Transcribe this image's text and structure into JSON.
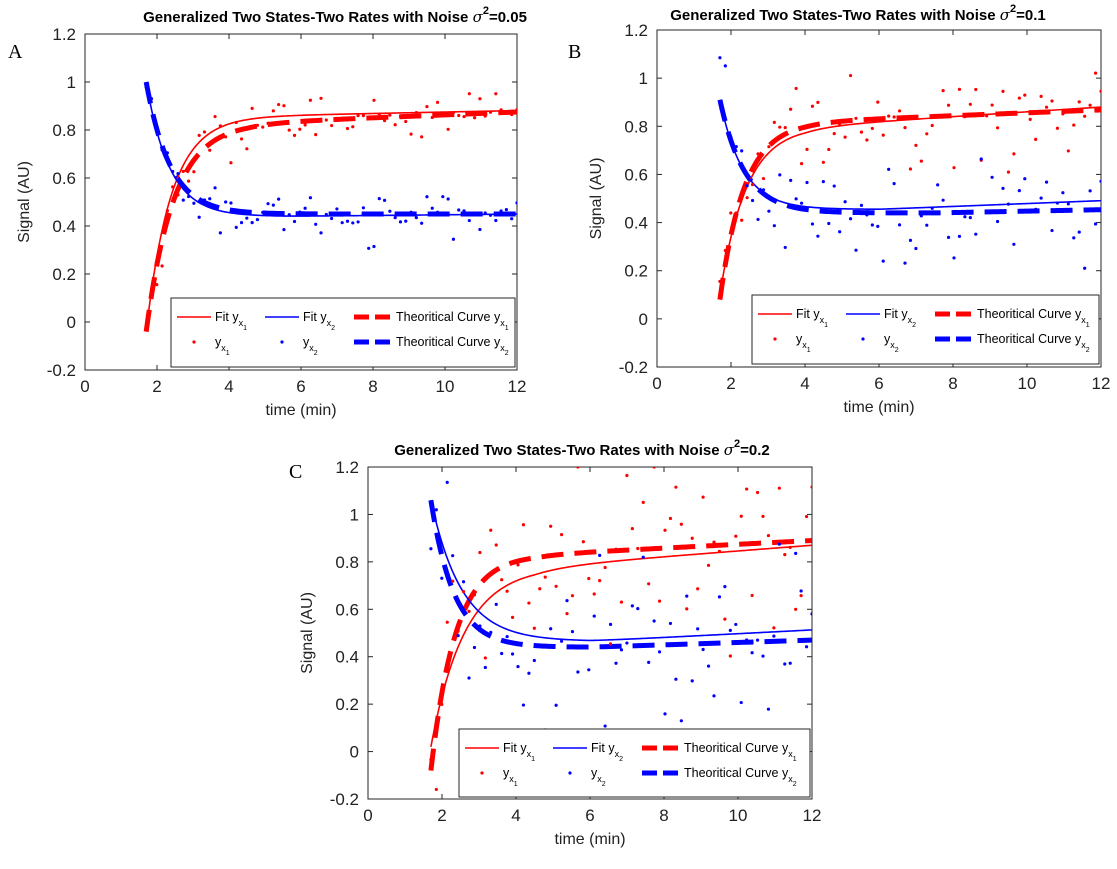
{
  "chart_data": [
    {
      "type": "line",
      "panel_label": "A",
      "title": "Generalized Two States-Two Rates with Noise σ²=0.05",
      "title_prefix": "Generalized Two States-Two Rates with Noise ",
      "title_sigma": "σ",
      "title_sup": "2",
      "title_suffix": "=0.05",
      "xlabel": "time (min)",
      "ylabel": "Signal (AU)",
      "xlim": [
        0,
        12
      ],
      "ylim": [
        -0.2,
        1.2
      ],
      "xticks": [
        "0",
        "2",
        "4",
        "6",
        "8",
        "10",
        "12"
      ],
      "yticks": [
        "-0.2",
        "0",
        "0.2",
        "0.4",
        "0.6",
        "0.8",
        "1",
        "1.2"
      ],
      "model": {
        "t0": 1.7,
        "fit": {
          "x1": {
            "ainf": 0.85,
            "a0": -0.04,
            "k": 1.45,
            "b": 0.003
          },
          "x2": {
            "ainf": 0.44,
            "a0": 1.0,
            "k": 1.55,
            "b": 0.0015,
            "bstart": 5.5
          }
        },
        "theory": {
          "x1": {
            "ainf": 0.83,
            "a0": -0.04,
            "k": 1.3,
            "b": 0.006,
            "bstart": 4.5
          },
          "x2": {
            "ainf": 0.45,
            "a0": 1.0,
            "k": 1.5
          }
        }
      },
      "noise_sd": 0.05,
      "n_points": 71,
      "series": [
        {
          "name": "Fit y_x1",
          "color": "#ff0000",
          "kind": "fit"
        },
        {
          "name": "Fit y_x2",
          "color": "#0000ff",
          "kind": "fit"
        },
        {
          "name": "Theoritical Curve y_x1",
          "color": "#ff0000",
          "kind": "theory"
        },
        {
          "name": "Theoritical Curve y_x2",
          "color": "#0000ff",
          "kind": "theory"
        },
        {
          "name": "y_x1",
          "color": "#ff0000",
          "kind": "points"
        },
        {
          "name": "y_x2",
          "color": "#0000ff",
          "kind": "points"
        }
      ],
      "legend": {
        "fit1": "Fit y",
        "fit2": "Fit y",
        "dot1": "y",
        "dot2": "y",
        "theory1": "Theoritical Curve y",
        "theory2": "Theoritical Curve y",
        "sub_x": "x",
        "sub1": "1",
        "sub2": "2"
      }
    },
    {
      "type": "line",
      "panel_label": "B",
      "title": "Generalized Two States-Two Rates with Noise σ²=0.1",
      "title_prefix": "Generalized Two States-Two Rates with Noise ",
      "title_sigma": "σ",
      "title_sup": "2",
      "title_suffix": "=0.1",
      "xlabel": "time (min)",
      "ylabel": "Signal (AU)",
      "xlim": [
        0,
        12
      ],
      "ylim": [
        -0.2,
        1.2
      ],
      "xticks": [
        "0",
        "2",
        "4",
        "6",
        "8",
        "10",
        "12"
      ],
      "yticks": [
        "-0.2",
        "0",
        "0.2",
        "0.4",
        "0.6",
        "0.8",
        "1",
        "1.2"
      ],
      "model": {
        "t0": 1.7,
        "fit": {
          "x1": {
            "ainf": 0.8,
            "a0": 0.1,
            "k": 1.4,
            "b": 0.01,
            "bstart": 4.0
          },
          "x2": {
            "ainf": 0.455,
            "a0": 0.91,
            "k": 1.6,
            "b": 0.006,
            "bstart": 6.0
          }
        },
        "theory": {
          "x1": {
            "ainf": 0.82,
            "a0": 0.08,
            "k": 1.5,
            "b": 0.006,
            "bstart": 4.0
          },
          "x2": {
            "ainf": 0.44,
            "a0": 0.91,
            "k": 1.5,
            "b": 0.003,
            "bstart": 7.5
          }
        }
      },
      "noise_sd": 0.1,
      "n_points": 71,
      "series": [
        {
          "name": "Fit y_x1",
          "color": "#ff0000",
          "kind": "fit"
        },
        {
          "name": "Fit y_x2",
          "color": "#0000ff",
          "kind": "fit"
        },
        {
          "name": "Theoritical Curve y_x1",
          "color": "#ff0000",
          "kind": "theory"
        },
        {
          "name": "Theoritical Curve y_x2",
          "color": "#0000ff",
          "kind": "theory"
        },
        {
          "name": "y_x1",
          "color": "#ff0000",
          "kind": "points"
        },
        {
          "name": "y_x2",
          "color": "#0000ff",
          "kind": "points"
        }
      ],
      "legend": {
        "fit1": "Fit y",
        "fit2": "Fit y",
        "dot1": "y",
        "dot2": "y",
        "theory1": "Theoritical Curve y",
        "theory2": "Theoritical Curve y",
        "sub_x": "x",
        "sub1": "1",
        "sub2": "2"
      }
    },
    {
      "type": "line",
      "panel_label": "C",
      "title": "Generalized Two States-Two Rates with Noise σ²=0.2",
      "title_prefix": "Generalized Two States-Two Rates with Noise ",
      "title_sigma": "σ",
      "title_sup": "2",
      "title_suffix": "=0.2",
      "xlabel": "time (min)",
      "ylabel": "Signal (AU)",
      "xlim": [
        0,
        12
      ],
      "ylim": [
        -0.2,
        1.2
      ],
      "xticks": [
        "0",
        "2",
        "4",
        "6",
        "8",
        "10",
        "12"
      ],
      "yticks": [
        "-0.2",
        "0",
        "0.2",
        "0.4",
        "0.6",
        "0.8",
        "1",
        "1.2"
      ],
      "model": {
        "t0": 1.7,
        "fit": {
          "x1": {
            "ainf": 0.78,
            "a0": 0.02,
            "k": 1.1,
            "b": 0.012,
            "bstart": 4.5
          },
          "x2": {
            "ainf": 0.465,
            "a0": 1.06,
            "k": 1.2,
            "b": 0.008,
            "bstart": 6.0
          }
        },
        "theory": {
          "x1": {
            "ainf": 0.83,
            "a0": -0.08,
            "k": 1.5,
            "b": 0.008,
            "bstart": 4.5
          },
          "x2": {
            "ainf": 0.44,
            "a0": 1.06,
            "k": 1.6,
            "b": 0.005,
            "bstart": 6.0
          }
        }
      },
      "noise_sd": 0.2,
      "n_points": 71,
      "series": [
        {
          "name": "Fit y_x1",
          "color": "#ff0000",
          "kind": "fit"
        },
        {
          "name": "Fit y_x2",
          "color": "#0000ff",
          "kind": "fit"
        },
        {
          "name": "Theoritical Curve y_x1",
          "color": "#ff0000",
          "kind": "theory"
        },
        {
          "name": "Theoritical Curve y_x2",
          "color": "#0000ff",
          "kind": "theory"
        },
        {
          "name": "y_x1",
          "color": "#ff0000",
          "kind": "points"
        },
        {
          "name": "y_x2",
          "color": "#0000ff",
          "kind": "points"
        }
      ],
      "legend": {
        "fit1": "Fit y",
        "fit2": "Fit y",
        "dot1": "y",
        "dot2": "y",
        "theory1": "Theoritical Curve y",
        "theory2": "Theoritical Curve y",
        "sub_x": "x",
        "sub1": "1",
        "sub2": "2"
      }
    }
  ]
}
